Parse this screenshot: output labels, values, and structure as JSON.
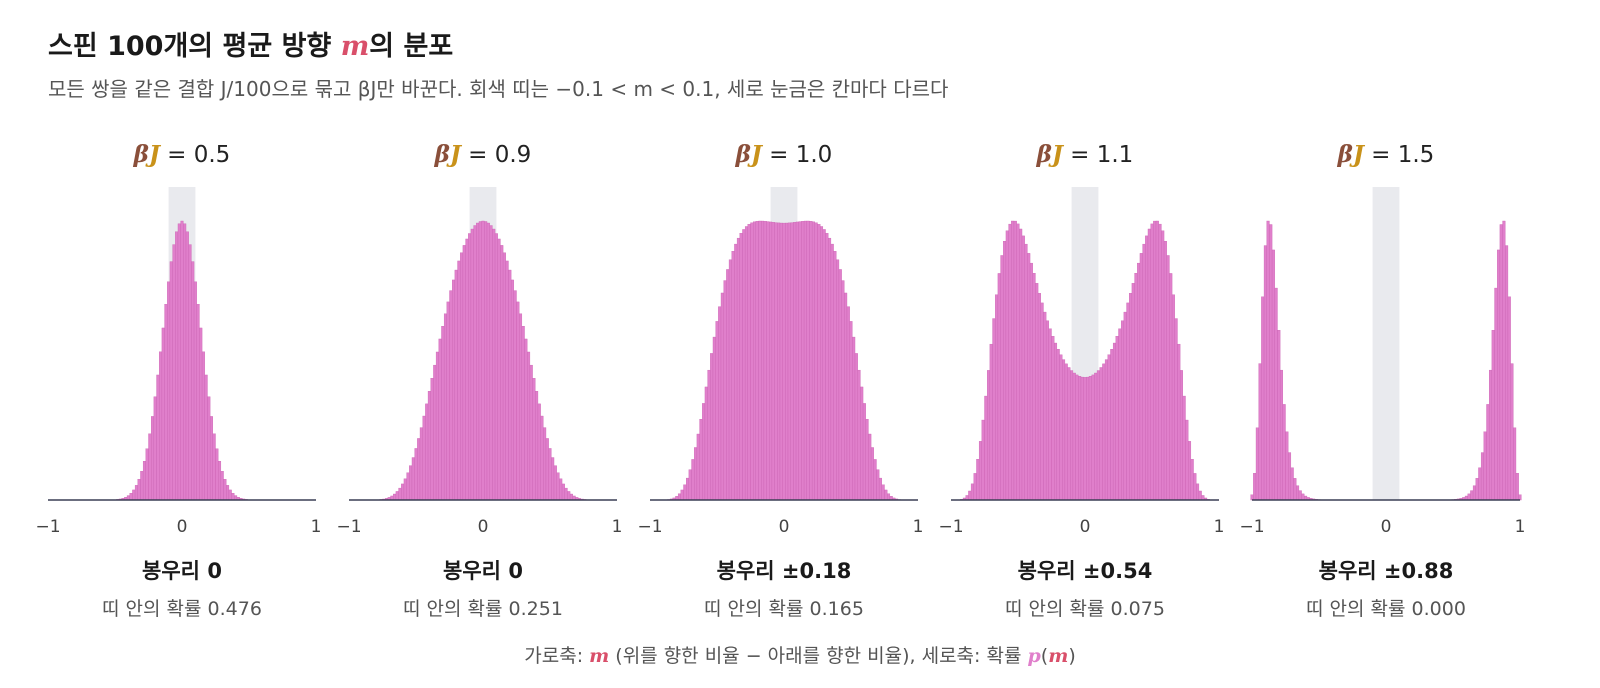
{
  "header": {
    "title_pre": "스핀 100개의 평균 방향 ",
    "title_m": "m",
    "title_post": "의 분포",
    "subtitle": "모든 쌍을 같은 결합 J/100으로 묶고 βJ만 바꾼다. 회색 띠는 −0.1 < m < 0.1, 세로 눈금은 칸마다 다르다"
  },
  "colors": {
    "bar": "#e07fcb",
    "bar_edge": "#c85fb0",
    "band": "#e9eaee",
    "axis": "#3a3f55",
    "beta": "#8a4f3a",
    "J": "#c9921a",
    "m_red": "#d94f6a",
    "p_pink": "#e07fcb"
  },
  "panel_label": {
    "beta": "β",
    "J": "J",
    "eq": " = "
  },
  "peak_prefix": "봉우리 ",
  "prob_prefix": "띠 안의 확률 ",
  "caption": {
    "pre": "가로축: ",
    "m": "m",
    "mid": " (위를 향한 비율 − 아래를 향한 비율), 세로축: 확률 ",
    "p": "p",
    "open": "(",
    "m2": "m",
    "close": ")"
  },
  "chart_data": [
    {
      "type": "bar",
      "bJ": "0.5",
      "xlim": [
        -1,
        1
      ],
      "x_ticks": [
        "−1",
        "0",
        "1"
      ],
      "band": [
        -0.1,
        0.1
      ],
      "peak_label": "0",
      "band_prob": "0.476"
    },
    {
      "type": "bar",
      "bJ": "0.9",
      "xlim": [
        -1,
        1
      ],
      "x_ticks": [
        "−1",
        "0",
        "1"
      ],
      "band": [
        -0.1,
        0.1
      ],
      "peak_label": "0",
      "band_prob": "0.251"
    },
    {
      "type": "bar",
      "bJ": "1.0",
      "xlim": [
        -1,
        1
      ],
      "x_ticks": [
        "−1",
        "0",
        "1"
      ],
      "band": [
        -0.1,
        0.1
      ],
      "peak_label": "±0.18",
      "band_prob": "0.165"
    },
    {
      "type": "bar",
      "bJ": "1.1",
      "xlim": [
        -1,
        1
      ],
      "x_ticks": [
        "−1",
        "0",
        "1"
      ],
      "band": [
        -0.1,
        0.1
      ],
      "peak_label": "±0.54",
      "band_prob": "0.075"
    },
    {
      "type": "bar",
      "bJ": "1.5",
      "xlim": [
        -1,
        1
      ],
      "x_ticks": [
        "−1",
        "0",
        "1"
      ],
      "band": [
        -0.1,
        0.1
      ],
      "peak_label": "±0.88",
      "band_prob": "0.000"
    }
  ]
}
